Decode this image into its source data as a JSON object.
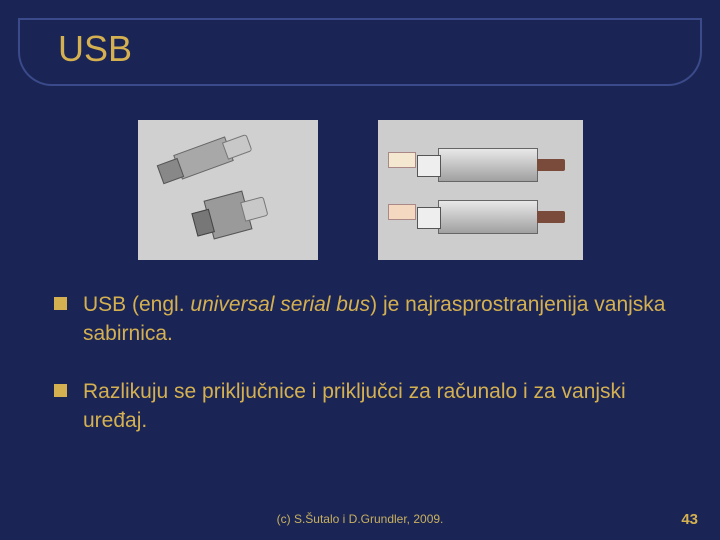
{
  "title": "USB",
  "bullets": [
    {
      "pre": "USB (engl. ",
      "italic": "universal serial bus",
      "post": ") je najrasprostranjenija vanjska sabirnica."
    },
    {
      "pre": "Razlikuju se priključnice i priključci za računalo i za vanjski uređaj.",
      "italic": "",
      "post": ""
    }
  ],
  "footer": "(c) S.Šutalo i D.Grundler, 2009.",
  "page": "43",
  "colors": {
    "background": "#1a2555",
    "accent": "#d4b050",
    "border": "#3a4a8a"
  },
  "images": {
    "left": {
      "desc": "usb-type-a-and-b-plugs",
      "bg": "#d0d0d0"
    },
    "right": {
      "desc": "usb-connectors-labeled",
      "bg": "#cdcdcd"
    }
  }
}
